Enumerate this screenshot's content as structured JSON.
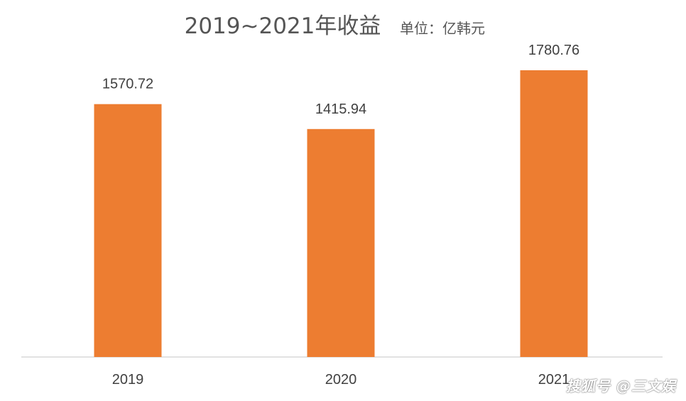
{
  "chart_data": {
    "type": "bar",
    "title": "2019~2021年收益",
    "unit_label": "单位：亿韩元",
    "categories": [
      "2019",
      "2020",
      "2021"
    ],
    "values": [
      1570.72,
      1415.94,
      1780.76
    ],
    "value_labels": [
      "1570.72",
      "1415.94",
      "1780.76"
    ],
    "ylim": [
      0,
      1900
    ],
    "xlabel": "",
    "ylabel": "",
    "grid": false,
    "legend": "none",
    "bar_color": "#ED7D31",
    "axis_color": "#D9D9D9"
  },
  "watermark": "搜狐号 @三文娱"
}
